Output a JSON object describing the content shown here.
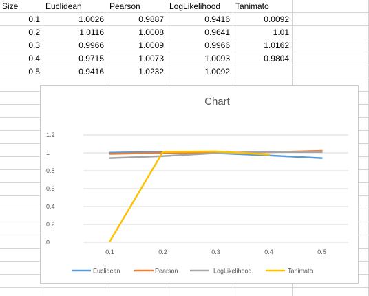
{
  "sheet": {
    "headers": [
      "Size",
      "Euclidean",
      "Pearson",
      "LogLikelihood",
      "Tanimato"
    ],
    "rows": [
      [
        "0.1",
        "1.0026",
        "0.9887",
        "0.9416",
        "0.0092"
      ],
      [
        "0.2",
        "1.0116",
        "1.0008",
        "0.9641",
        "1.01"
      ],
      [
        "0.3",
        "0.9966",
        "1.0009",
        "0.9966",
        "1.0162"
      ],
      [
        "0.4",
        "0.9715",
        "1.0073",
        "1.0093",
        "0.9804"
      ],
      [
        "0.5",
        "0.9416",
        "1.0232",
        "1.0092",
        ""
      ]
    ]
  },
  "chart_data": {
    "type": "line",
    "title": "Chart",
    "categories": [
      "0.1",
      "0.2",
      "0.3",
      "0.4",
      "0.5"
    ],
    "ylim": [
      0,
      1.2
    ],
    "yticks": [
      "0",
      "0.2",
      "0.4",
      "0.6",
      "0.8",
      "1",
      "1.2"
    ],
    "grid": true,
    "legend": "bottom",
    "series": [
      {
        "name": "Euclidean",
        "color": "#5b9bd5",
        "values": [
          1.0026,
          1.0116,
          0.9966,
          0.9715,
          0.9416
        ]
      },
      {
        "name": "Pearson",
        "color": "#ed7d31",
        "values": [
          0.9887,
          1.0008,
          1.0009,
          1.0073,
          1.0232
        ]
      },
      {
        "name": "LogLikelihood",
        "color": "#a5a5a5",
        "values": [
          0.9416,
          0.9641,
          0.9966,
          1.0093,
          1.0092
        ]
      },
      {
        "name": "Tanimato",
        "color": "#ffc000",
        "values": [
          0.0092,
          1.01,
          1.0162,
          0.9804,
          null
        ]
      }
    ]
  }
}
